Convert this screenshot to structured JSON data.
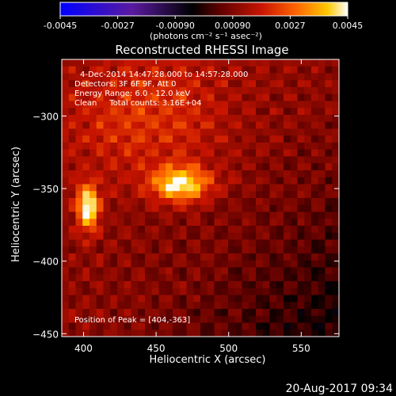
{
  "colorbar": {
    "ticks": [
      "-0.0045",
      "-0.0027",
      "-0.00090",
      "0.00090",
      "0.0027",
      "0.0045"
    ],
    "units": "(photons cm⁻² s⁻¹ asec⁻²)"
  },
  "title": "Reconstructed RHESSI Image",
  "annotations": [
    "4-Dec-2014 14:47:28.000 to 14:57:28.000",
    "Detectors: 3F 6F 9F, Att 0",
    "Energy Range: 6.0 - 12.0 keV",
    "Clean     Total counts: 3.16E+04"
  ],
  "peak_label": "Position of Peak = [404,-363]",
  "timestamp": "20-Aug-2017 09:34",
  "chart_data": {
    "type": "heatmap",
    "title": "Reconstructed RHESSI Image",
    "xlabel": "Heliocentric X (arcsec)",
    "ylabel": "Heliocentric Y (arcsec)",
    "xlim": [
      385,
      576
    ],
    "ylim": [
      -452,
      -261
    ],
    "xticks": [
      400,
      450,
      500,
      550
    ],
    "yticks": [
      -300,
      -350,
      -400,
      -450
    ],
    "colorbar_range": [
      -0.0045,
      0.0045
    ],
    "colormap": [
      "#0000ff",
      "#5a1aa0",
      "#000000",
      "#5a0000",
      "#c81400",
      "#ff6400",
      "#ffc800",
      "#ffffff"
    ],
    "sources": [
      {
        "x": 467,
        "y": -347,
        "peak": 0.0034,
        "sigma_x": 14,
        "sigma_y": 8
      },
      {
        "x": 403,
        "y": -363,
        "peak": 0.0038,
        "sigma_x": 5,
        "sigma_y": 11
      },
      {
        "x": 445,
        "y": -300,
        "peak": 0.0012,
        "sigma_x": 40,
        "sigma_y": 30
      }
    ],
    "peak_position": [
      404,
      -363
    ]
  }
}
